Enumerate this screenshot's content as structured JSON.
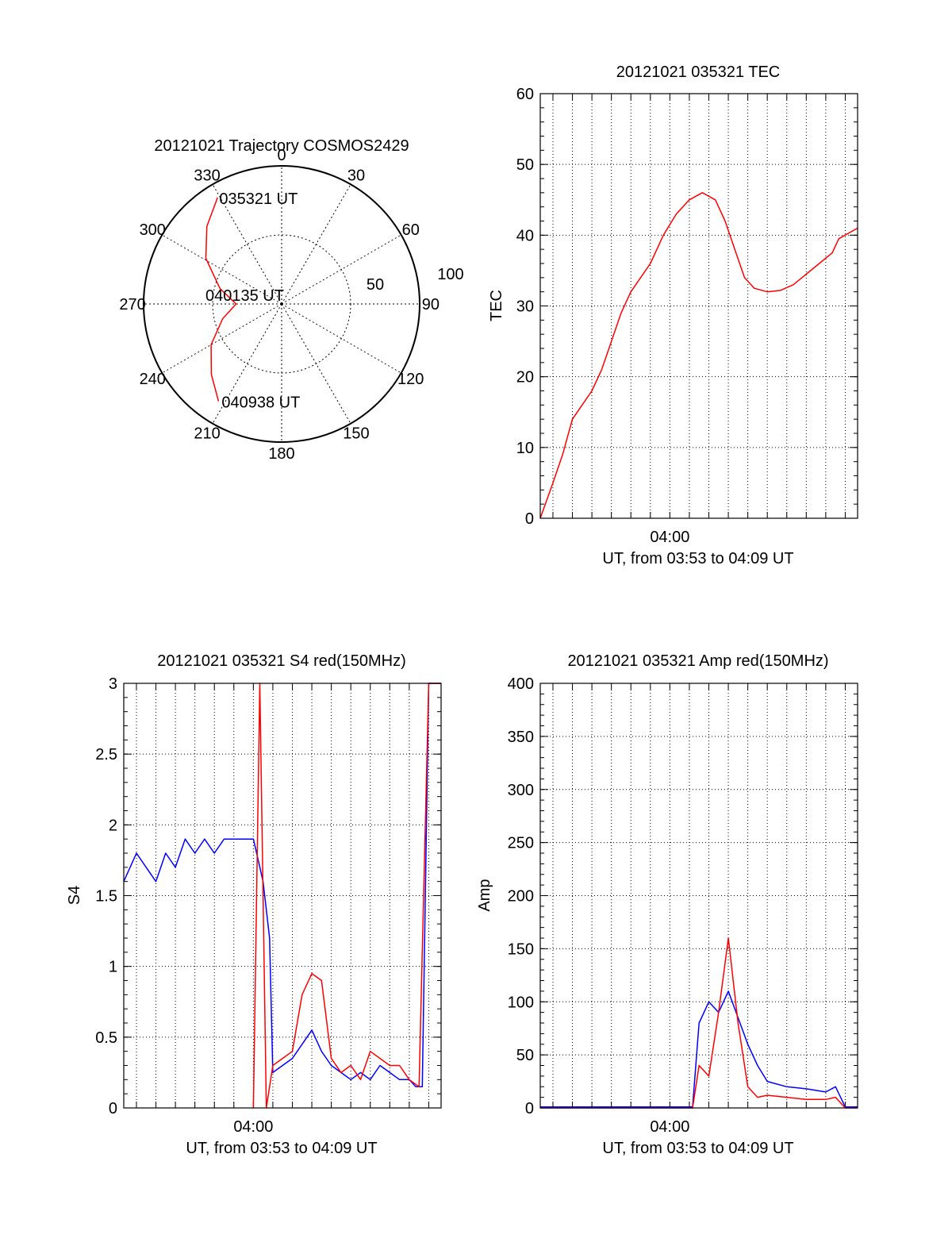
{
  "colors": {
    "red": "#ff0000",
    "blue": "#0000ff",
    "axis": "#000000",
    "grid": "#000000"
  },
  "chart_data": [
    {
      "id": "trajectory",
      "type": "polar",
      "title": "20121021 Trajectory COSMOS2429",
      "angle_labels": [
        "0",
        "30",
        "60",
        "90",
        "120",
        "150",
        "180",
        "210",
        "240",
        "270",
        "300",
        "330"
      ],
      "radial_labels": [
        "50",
        "100"
      ],
      "rlim": [
        0,
        100
      ],
      "track": {
        "color": "red",
        "points": [
          [
            329,
            90
          ],
          [
            316,
            78
          ],
          [
            301,
            64
          ],
          [
            284,
            46
          ],
          [
            270,
            33
          ],
          [
            256,
            44
          ],
          [
            240,
            59
          ],
          [
            225,
            72
          ],
          [
            213,
            84
          ]
        ],
        "start_label": "035321 UT",
        "mid_label": "040135 UT",
        "end_label": "040938 UT"
      }
    },
    {
      "id": "tec",
      "type": "line",
      "title": "20121021 035321 TEC",
      "xlabel": "UT, from 03:53 to 04:09 UT",
      "ylabel": "TEC",
      "xlim": [
        "03:53:21",
        "04:09:38"
      ],
      "ylim": [
        0,
        60
      ],
      "x_tick_labels": [
        {
          "x": "04:00:00",
          "label": "04:00"
        }
      ],
      "y_tick_labels": [
        "0",
        "10",
        "20",
        "30",
        "40",
        "50",
        "60"
      ],
      "grid": true,
      "series": [
        {
          "color": "red",
          "points": [
            [
              "03:53:21",
              0
            ],
            [
              "03:54:00",
              5
            ],
            [
              "03:54:30",
              9
            ],
            [
              "03:55:00",
              14
            ],
            [
              "03:55:30",
              16
            ],
            [
              "03:56:00",
              18
            ],
            [
              "03:56:30",
              21
            ],
            [
              "03:57:00",
              25
            ],
            [
              "03:57:30",
              29
            ],
            [
              "03:58:00",
              32
            ],
            [
              "03:58:30",
              34
            ],
            [
              "03:59:00",
              36
            ],
            [
              "03:59:40",
              40
            ],
            [
              "04:00:20",
              43
            ],
            [
              "04:01:00",
              45
            ],
            [
              "04:01:40",
              46
            ],
            [
              "04:02:20",
              45
            ],
            [
              "04:02:50",
              42
            ],
            [
              "04:03:20",
              38
            ],
            [
              "04:03:50",
              34
            ],
            [
              "04:04:20",
              32.5
            ],
            [
              "04:05:00",
              32
            ],
            [
              "04:05:40",
              32.2
            ],
            [
              "04:06:20",
              33
            ],
            [
              "04:07:00",
              34.5
            ],
            [
              "04:07:40",
              36
            ],
            [
              "04:08:20",
              37.5
            ],
            [
              "04:08:40",
              39.5
            ],
            [
              "04:09:38",
              41
            ]
          ]
        }
      ]
    },
    {
      "id": "s4",
      "type": "line",
      "title": "20121021 035321 S4 red(150MHz)",
      "xlabel": "UT, from 03:53 to 04:09 UT",
      "ylabel": "S4",
      "xlim": [
        "03:53:21",
        "04:09:38"
      ],
      "ylim": [
        0,
        3
      ],
      "x_tick_labels": [
        {
          "x": "04:00:00",
          "label": "04:00"
        }
      ],
      "y_tick_labels": [
        "0",
        "0.5",
        "1",
        "1.5",
        "2",
        "2.5",
        "3"
      ],
      "grid": true,
      "series": [
        {
          "color": "blue",
          "points": [
            [
              "03:53:21",
              1.6
            ],
            [
              "03:54:00",
              1.8
            ],
            [
              "03:54:30",
              1.7
            ],
            [
              "03:55:00",
              1.6
            ],
            [
              "03:55:30",
              1.8
            ],
            [
              "03:56:00",
              1.7
            ],
            [
              "03:56:30",
              1.9
            ],
            [
              "03:57:00",
              1.8
            ],
            [
              "03:57:30",
              1.9
            ],
            [
              "03:58:00",
              1.8
            ],
            [
              "03:58:30",
              1.9
            ],
            [
              "03:59:00",
              1.9
            ],
            [
              "03:59:30",
              1.9
            ],
            [
              "04:00:00",
              1.9
            ],
            [
              "04:00:30",
              1.6
            ],
            [
              "04:00:50",
              1.2
            ],
            [
              "04:01:00",
              0.25
            ],
            [
              "04:01:30",
              0.3
            ],
            [
              "04:02:00",
              0.35
            ],
            [
              "04:02:30",
              0.45
            ],
            [
              "04:03:00",
              0.55
            ],
            [
              "04:03:30",
              0.4
            ],
            [
              "04:04:00",
              0.3
            ],
            [
              "04:04:30",
              0.25
            ],
            [
              "04:05:00",
              0.2
            ],
            [
              "04:05:30",
              0.25
            ],
            [
              "04:06:00",
              0.2
            ],
            [
              "04:06:30",
              0.3
            ],
            [
              "04:07:00",
              0.25
            ],
            [
              "04:07:30",
              0.2
            ],
            [
              "04:08:00",
              0.2
            ],
            [
              "04:08:20",
              0.15
            ],
            [
              "04:08:40",
              0.15
            ],
            [
              "04:09:00",
              3.0
            ],
            [
              "04:09:38",
              3.0
            ]
          ]
        },
        {
          "color": "red",
          "points": [
            [
              "04:00:00",
              0
            ],
            [
              "04:00:20",
              3.0
            ],
            [
              "04:00:40",
              0
            ],
            [
              "04:01:00",
              0.3
            ],
            [
              "04:01:30",
              0.35
            ],
            [
              "04:02:00",
              0.4
            ],
            [
              "04:02:30",
              0.8
            ],
            [
              "04:03:00",
              0.95
            ],
            [
              "04:03:30",
              0.9
            ],
            [
              "04:04:00",
              0.35
            ],
            [
              "04:04:30",
              0.25
            ],
            [
              "04:05:00",
              0.3
            ],
            [
              "04:05:30",
              0.2
            ],
            [
              "04:06:00",
              0.4
            ],
            [
              "04:06:30",
              0.35
            ],
            [
              "04:07:00",
              0.3
            ],
            [
              "04:07:30",
              0.3
            ],
            [
              "04:08:00",
              0.2
            ],
            [
              "04:08:30",
              0.15
            ],
            [
              "04:09:00",
              3.0
            ],
            [
              "04:09:38",
              3.0
            ]
          ]
        }
      ]
    },
    {
      "id": "amp",
      "type": "line",
      "title": "20121021 035321 Amp red(150MHz)",
      "xlabel": "UT, from 03:53 to 04:09 UT",
      "ylabel": "Amp",
      "xlim": [
        "03:53:21",
        "04:09:38"
      ],
      "ylim": [
        0,
        400
      ],
      "x_tick_labels": [
        {
          "x": "04:00:00",
          "label": "04:00"
        }
      ],
      "y_tick_labels": [
        "0",
        "50",
        "100",
        "150",
        "200",
        "250",
        "300",
        "350",
        "400"
      ],
      "grid": true,
      "series": [
        {
          "color": "blue",
          "points": [
            [
              "03:53:21",
              1
            ],
            [
              "04:01:10",
              1
            ],
            [
              "04:01:30",
              80
            ],
            [
              "04:02:00",
              100
            ],
            [
              "04:02:30",
              90
            ],
            [
              "04:03:00",
              110
            ],
            [
              "04:03:30",
              85
            ],
            [
              "04:04:00",
              60
            ],
            [
              "04:04:30",
              40
            ],
            [
              "04:05:00",
              25
            ],
            [
              "04:06:00",
              20
            ],
            [
              "04:07:00",
              18
            ],
            [
              "04:08:00",
              15
            ],
            [
              "04:08:30",
              20
            ],
            [
              "04:09:00",
              1
            ],
            [
              "04:09:38",
              1
            ]
          ]
        },
        {
          "color": "red",
          "points": [
            [
              "03:53:21",
              0
            ],
            [
              "04:01:10",
              0
            ],
            [
              "04:01:30",
              40
            ],
            [
              "04:02:00",
              30
            ],
            [
              "04:02:30",
              90
            ],
            [
              "04:03:00",
              160
            ],
            [
              "04:03:30",
              80
            ],
            [
              "04:04:00",
              20
            ],
            [
              "04:04:30",
              10
            ],
            [
              "04:05:00",
              12
            ],
            [
              "04:06:00",
              10
            ],
            [
              "04:07:00",
              8
            ],
            [
              "04:08:00",
              8
            ],
            [
              "04:08:30",
              10
            ],
            [
              "04:09:00",
              0
            ],
            [
              "04:09:38",
              0
            ]
          ]
        }
      ]
    }
  ]
}
